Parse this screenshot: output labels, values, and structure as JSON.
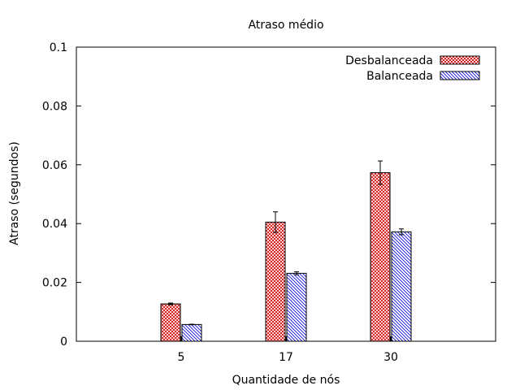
{
  "chart_data": {
    "type": "bar",
    "title": "Atraso médio",
    "xlabel": "Quantidade de nós",
    "ylabel": "Atraso (segundos)",
    "categories": [
      "5",
      "17",
      "30"
    ],
    "ylim": [
      0,
      0.1
    ],
    "yticks": [
      "0",
      "0.02",
      "0.04",
      "0.06",
      "0.08",
      "0.1"
    ],
    "grid": false,
    "legend_position": "top-right",
    "series": [
      {
        "name": "Desbalanceada",
        "color": "#cc0000",
        "pattern": "crosshatch",
        "values": [
          0.0127,
          0.0405,
          0.0573
        ],
        "error": [
          0.0003,
          0.0035,
          0.004
        ]
      },
      {
        "name": "Balanceada",
        "color": "#0000cc",
        "pattern": "diagonal",
        "values": [
          0.0057,
          0.0231,
          0.0372
        ],
        "error": [
          0.0001,
          0.0005,
          0.001
        ]
      }
    ]
  }
}
